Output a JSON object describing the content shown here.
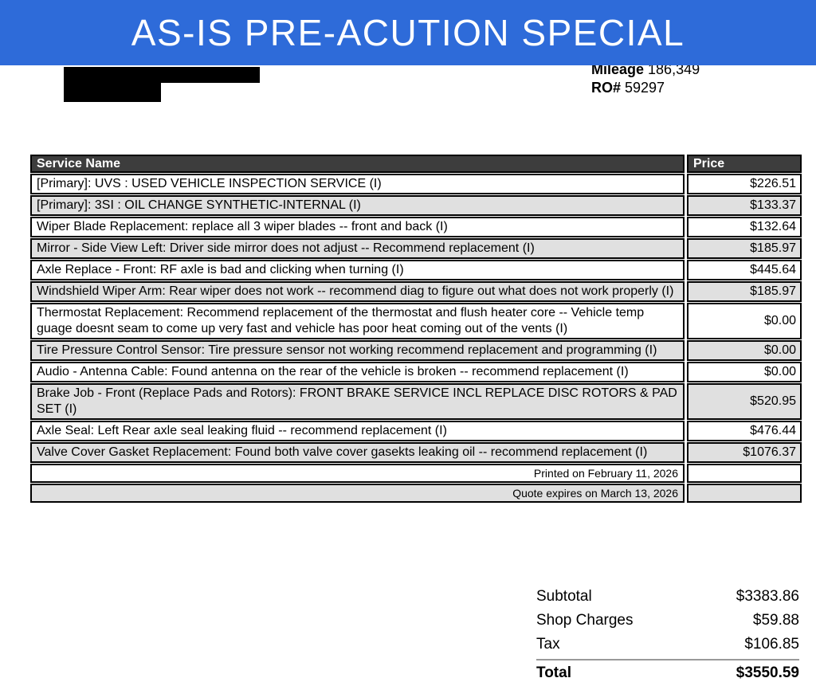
{
  "banner": {
    "title": "AS-IS PRE-ACUTION SPECIAL"
  },
  "vehicle_info": {
    "mileage_label": "Mileage",
    "mileage_value": "186,349",
    "ro_label": "RO#",
    "ro_value": "59297"
  },
  "table": {
    "columns": {
      "service": "Service Name",
      "price": "Price"
    },
    "rows": [
      {
        "service": "[Primary]: UVS : USED VEHICLE INSPECTION SERVICE (I)",
        "price": "$226.51"
      },
      {
        "service": "[Primary]: 3SI : OIL CHANGE SYNTHETIC-INTERNAL (I)",
        "price": "$133.37"
      },
      {
        "service": "Wiper Blade Replacement: replace all 3 wiper blades -- front and back (I)",
        "price": "$132.64"
      },
      {
        "service": "Mirror - Side View Left: Driver side mirror does not adjust -- Recommend replacement (I)",
        "price": "$185.97"
      },
      {
        "service": "Axle Replace - Front: RF axle is bad and clicking when turning (I)",
        "price": "$445.64"
      },
      {
        "service": "Windshield Wiper Arm: Rear wiper does not work -- recommend diag to figure out what does not work properly (I)",
        "price": "$185.97"
      },
      {
        "service": "Thermostat Replacement: Recommend replacement of the thermostat and flush heater core -- Vehicle temp guage doesnt seam to come up very fast and vehicle has poor heat coming out of the vents (I)",
        "price": "$0.00"
      },
      {
        "service": "Tire Pressure Control Sensor: Tire pressure sensor not working recommend replacement and programming (I)",
        "price": "$0.00"
      },
      {
        "service": "Audio - Antenna Cable: Found antenna on the rear of the vehicle is broken -- recommend replacement (I)",
        "price": "$0.00"
      },
      {
        "service": "Brake Job - Front (Replace Pads and Rotors): FRONT BRAKE SERVICE INCL REPLACE DISC ROTORS & PAD SET (I)",
        "price": "$520.95"
      },
      {
        "service": "Axle Seal: Left Rear axle seal leaking fluid -- recommend replacement (I)",
        "price": "$476.44"
      },
      {
        "service": "Valve Cover Gasket Replacement: Found both valve cover gasekts leaking oil -- recommend replacement (I)",
        "price": "$1076.37"
      }
    ],
    "notes": [
      "Printed on February 11, 2026",
      "Quote expires on March 13, 2026"
    ]
  },
  "totals": {
    "lines": [
      {
        "label": "Subtotal",
        "value": "$3383.86"
      },
      {
        "label": "Shop Charges",
        "value": "$59.88"
      },
      {
        "label": "Tax",
        "value": "$106.85"
      }
    ],
    "total": {
      "label": "Total",
      "value": "$3550.59"
    }
  },
  "colors": {
    "banner_blue": "#2e6bd9",
    "table_header_bg": "#3d3d3d",
    "row_alt_gray": "#e0e0e0"
  }
}
